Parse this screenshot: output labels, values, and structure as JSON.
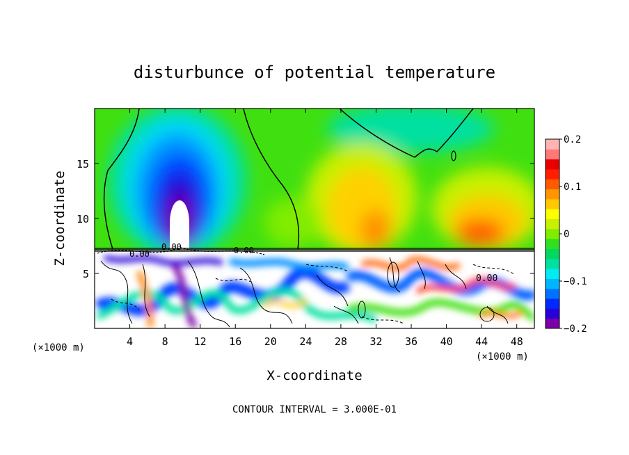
{
  "chart_data": {
    "type": "heatmap",
    "title": "disturbunce of potential temperature",
    "xlabel": "X-coordinate",
    "ylabel": "Z-coordinate",
    "x_unit_left": "(×1000 m)",
    "x_unit_right": "(×1000 m)",
    "footer": "CONTOUR INTERVAL = 3.000E-01",
    "xlim": [
      0,
      50
    ],
    "ylim": [
      0,
      20
    ],
    "x_ticks": [
      4,
      8,
      12,
      16,
      20,
      24,
      28,
      32,
      36,
      40,
      44,
      48
    ],
    "x_tick_labels": [
      "4",
      "8",
      "12",
      "16",
      "20",
      "24",
      "28",
      "32",
      "36",
      "40",
      "44",
      "48"
    ],
    "y_ticks": [
      5,
      10,
      15
    ],
    "y_tick_labels": [
      "5",
      "10",
      "15"
    ],
    "colorbar": {
      "range": [
        -0.2,
        0.2
      ],
      "tick_values": [
        0.2,
        0.1,
        0,
        -0.1,
        -0.2
      ],
      "tick_labels": [
        "0.2",
        "0.1",
        "0",
        "−0.1",
        "−0.2"
      ],
      "colors": [
        "#7a00a8",
        "#2800d8",
        "#0028ff",
        "#0072ff",
        "#00b4ff",
        "#00ecf0",
        "#00e0a0",
        "#00d860",
        "#30e020",
        "#80ec00",
        "#c8f000",
        "#ffff00",
        "#ffc800",
        "#ff9600",
        "#ff5a00",
        "#ff1e00",
        "#e80000",
        "#ff7878",
        "#ffb4b4"
      ]
    },
    "contour_labels": [
      "0.00",
      "0.00",
      "0.00",
      "0.00"
    ],
    "fields": [
      {
        "name": "cold-core",
        "x": 10,
        "z": 12,
        "value": -0.22
      },
      {
        "name": "warm-plume-east",
        "x": 42,
        "z": 10,
        "value": 0.14
      },
      {
        "name": "warm-plume-center",
        "x": 30,
        "z": 13,
        "value": 0.08
      },
      {
        "name": "upper-positive-band",
        "x": 36,
        "z": 19,
        "value": -0.04
      }
    ],
    "boundary_layer_top_z": 7.3
  }
}
